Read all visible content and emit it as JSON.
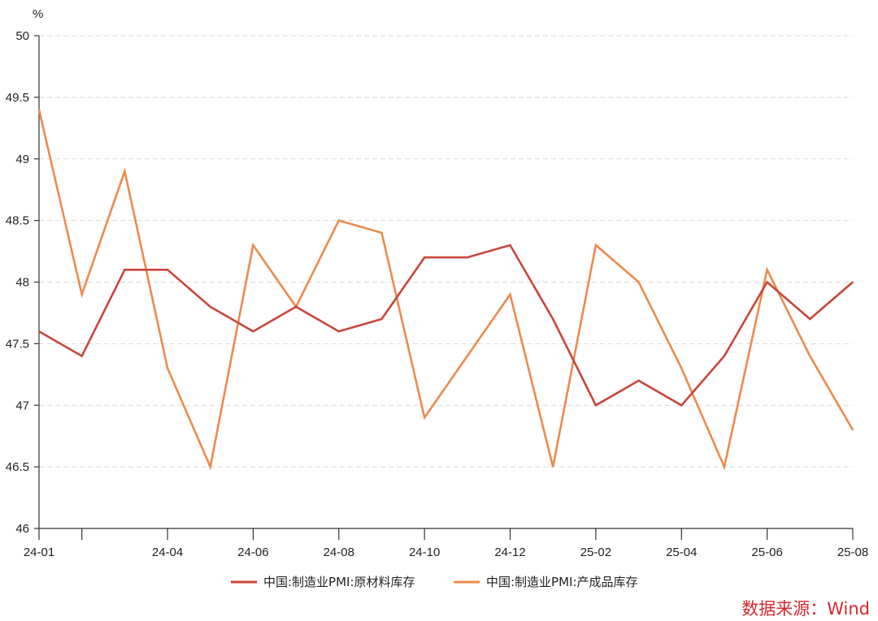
{
  "chart_data": {
    "type": "line",
    "title": "",
    "xlabel": "",
    "ylabel": "%",
    "ylim": [
      46,
      50
    ],
    "yticks": [
      "46",
      "46.5",
      "47",
      "47.5",
      "48",
      "48.5",
      "49",
      "49.5",
      "50"
    ],
    "grid": "horizontal-dashed",
    "x": [
      "24-01",
      "24-02",
      "24-03",
      "24-04",
      "24-05",
      "24-06",
      "24-07",
      "24-08",
      "24-09",
      "24-10",
      "24-11",
      "24-12",
      "25-01",
      "25-02",
      "25-03",
      "25-04",
      "25-05",
      "25-06",
      "25-07",
      "25-08"
    ],
    "xtick_labels": [
      "24-01",
      "",
      "24-04",
      "24-06",
      "24-08",
      "24-10",
      "24-12",
      "25-02",
      "25-04",
      "25-06",
      "25-08"
    ],
    "xtick_positions": [
      "24-01",
      "24-02",
      "24-04",
      "24-06",
      "24-08",
      "24-10",
      "24-12",
      "25-02",
      "25-04",
      "25-06",
      "25-08"
    ],
    "series": [
      {
        "name": "中国:制造业PMI:原材料库存",
        "color": "#c9453a",
        "values": [
          47.6,
          47.4,
          48.1,
          48.1,
          47.8,
          47.6,
          47.8,
          47.6,
          47.7,
          48.2,
          48.2,
          48.3,
          47.7,
          47.0,
          47.2,
          47.0,
          47.4,
          48.0,
          47.7,
          48.0
        ]
      },
      {
        "name": "中国:制造业PMI:产成品库存",
        "color": "#ec8a4d",
        "values": [
          49.4,
          47.9,
          48.9,
          47.3,
          46.5,
          48.3,
          47.8,
          48.5,
          48.4,
          46.9,
          47.4,
          47.9,
          46.5,
          48.3,
          48.0,
          47.3,
          46.5,
          48.1,
          47.4,
          46.8
        ]
      }
    ],
    "legend_position": "bottom-center",
    "source": "数据来源：Wind"
  }
}
